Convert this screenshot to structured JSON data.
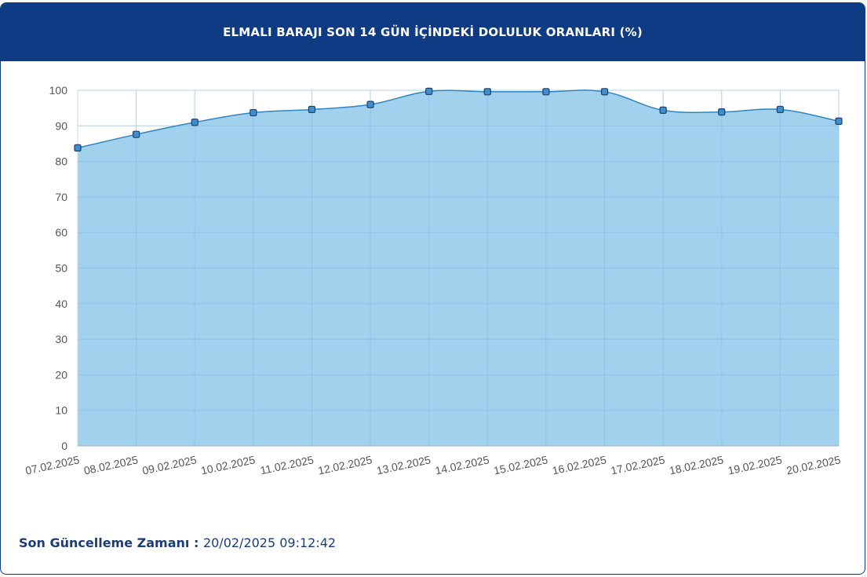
{
  "header": {
    "title": "ELMALI BARAJI SON 14 GÜN İÇİNDEKİ DOLULUK ORANLARI (%)"
  },
  "footer": {
    "label": "Son Güncelleme Zamanı",
    "separator": " : ",
    "value": "20/02/2025 09:12:42"
  },
  "colors": {
    "header_bg": "#0f3b84",
    "area_fill": "#9ccfec",
    "line": "#2f86be",
    "marker_fill": "#3f8fd0",
    "marker_stroke": "#1f3f6e",
    "grid": "#e3e8ee"
  },
  "chart_data": {
    "type": "area",
    "title": "",
    "xlabel": "",
    "ylabel": "",
    "ylim": [
      0,
      100
    ],
    "yticks": [
      0,
      10,
      20,
      30,
      40,
      50,
      60,
      70,
      80,
      90,
      100
    ],
    "grid": true,
    "categories": [
      "07.02.2025",
      "08.02.2025",
      "09.02.2025",
      "10.02.2025",
      "11.02.2025",
      "12.02.2025",
      "13.02.2025",
      "14.02.2025",
      "15.02.2025",
      "16.02.2025",
      "17.02.2025",
      "18.02.2025",
      "19.02.2025",
      "20.02.2025"
    ],
    "series": [
      {
        "values": [
          83.8,
          87.6,
          91.0,
          93.7,
          94.6,
          96.0,
          99.7,
          99.6,
          99.6,
          99.6,
          94.4,
          93.9,
          94.6,
          91.3
        ]
      }
    ]
  }
}
